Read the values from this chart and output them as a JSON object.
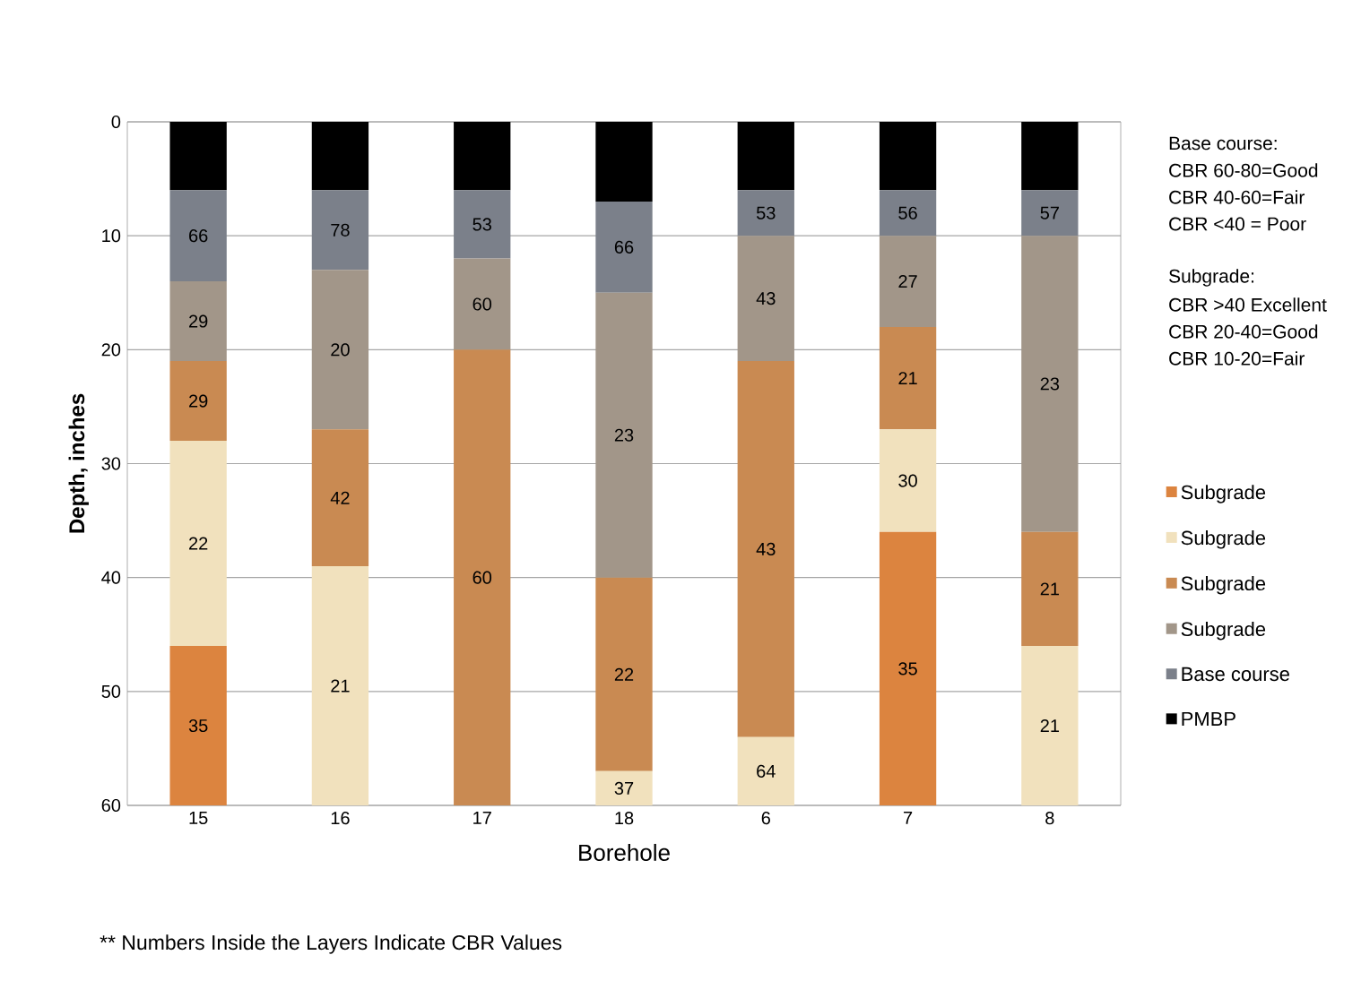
{
  "chart_data": {
    "type": "bar",
    "stacked": true,
    "xlabel": "Borehole",
    "ylabel": "Depth, inches",
    "categories": [
      "15",
      "16",
      "17",
      "18",
      "6",
      "7",
      "8"
    ],
    "ylim": [
      60,
      0
    ],
    "yticks": [
      0,
      10,
      20,
      30,
      40,
      50,
      60
    ],
    "grid": "y",
    "legend": "right",
    "series": [
      {
        "name": "PMBP",
        "color": "#000000",
        "values": [
          6,
          6,
          6,
          7,
          6,
          6,
          6
        ]
      },
      {
        "name": "Base course",
        "color": "#7b808a",
        "values": [
          8,
          7,
          6,
          8,
          4,
          4,
          4
        ]
      },
      {
        "name": "Subgrade",
        "color": "#a29689",
        "values": [
          7,
          14,
          8,
          25,
          11,
          8,
          26
        ]
      },
      {
        "name": "Subgrade",
        "color": "#c98a52",
        "values": [
          7,
          12,
          40,
          17,
          33,
          9,
          10
        ]
      },
      {
        "name": "Subgrade",
        "color": "#f1e1bd",
        "values": [
          18,
          21,
          null,
          3,
          6,
          9,
          14
        ]
      },
      {
        "name": "Subgrade",
        "color": "#dc843f",
        "values": [
          14,
          null,
          null,
          null,
          null,
          24,
          null
        ]
      }
    ],
    "annotations": [
      "Base course:",
      "CBR 60-80=Good",
      "CBR 40-60=Fair",
      "CBR <40 = Poor",
      "Subgrade:",
      "CBR >40 Excellent",
      "CBR 20-40=Good",
      "CBR 10-20=Fair",
      "** Numbers Inside the Layers Indicate CBR Values",
      "66",
      "78",
      "53",
      "66",
      "53",
      "56",
      "57",
      "29",
      "20",
      "60",
      "23",
      "43",
      "27",
      "23",
      "29",
      "42",
      "60",
      "22",
      "43",
      "21",
      "21",
      "22",
      "21",
      "37",
      "64",
      "30",
      "21",
      "35",
      "35"
    ]
  }
}
